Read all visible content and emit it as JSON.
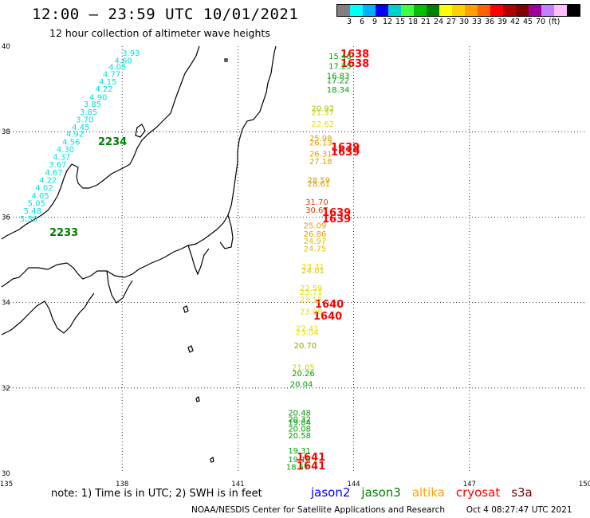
{
  "header": {
    "title": "12:00 – 23:59 UTC 10/01/2021",
    "subtitle": "12 hour collection of altimeter wave heights"
  },
  "colorbar": {
    "colors": [
      "#808080",
      "#00ffff",
      "#00b0ff",
      "#0000ff",
      "#00d0d0",
      "#40ff40",
      "#00c000",
      "#008000",
      "#ffff00",
      "#ffd000",
      "#ffa000",
      "#ff6000",
      "#ff0000",
      "#b00000",
      "#800000",
      "#a000a0",
      "#c080ff",
      "#ffc0ff",
      "#000000"
    ],
    "labels": [
      "3",
      "6",
      "9",
      "12",
      "15",
      "18",
      "21",
      "24",
      "27",
      "30",
      "33",
      "36",
      "39",
      "42",
      "45",
      "70"
    ],
    "unit": "(ft)"
  },
  "axes": {
    "x_ticks": [
      "135",
      "138",
      "141",
      "144",
      "147",
      "150"
    ],
    "y_ticks": [
      "40",
      "38",
      "36",
      "34",
      "32",
      "30"
    ]
  },
  "passes": [
    {
      "id": "2234",
      "satellite": "jason3",
      "color": "#008000"
    },
    {
      "id": "2233",
      "satellite": "jason3",
      "color": "#008000"
    },
    {
      "id": "1638",
      "satellite": "cryosat",
      "color": "#ff0000"
    },
    {
      "id": "1638",
      "satellite": "cryosat",
      "color": "#ff0000"
    },
    {
      "id": "1639",
      "satellite": "cryosat",
      "color": "#ff0000"
    },
    {
      "id": "1639",
      "satellite": "cryosat",
      "color": "#ff0000"
    },
    {
      "id": "1639",
      "satellite": "cryosat",
      "color": "#ff0000"
    },
    {
      "id": "1639",
      "satellite": "cryosat",
      "color": "#ff0000"
    },
    {
      "id": "1640",
      "satellite": "cryosat",
      "color": "#ff0000"
    },
    {
      "id": "1640",
      "satellite": "cryosat",
      "color": "#ff0000"
    },
    {
      "id": "1641",
      "satellite": "cryosat",
      "color": "#ff0000"
    },
    {
      "id": "1641",
      "satellite": "cryosat",
      "color": "#ff0000"
    }
  ],
  "measurements": [
    {
      "lon": 138.0,
      "lat": 39.78,
      "swh": "3.93",
      "color": "#00e0e0"
    },
    {
      "lon": 137.8,
      "lat": 39.6,
      "swh": "4.60",
      "color": "#00e0e0"
    },
    {
      "lon": 137.65,
      "lat": 39.45,
      "swh": "4.05",
      "color": "#00e0e0"
    },
    {
      "lon": 137.5,
      "lat": 39.28,
      "swh": "4.77",
      "color": "#00e0e0"
    },
    {
      "lon": 137.4,
      "lat": 39.1,
      "swh": "4.15",
      "color": "#00e0e0"
    },
    {
      "lon": 137.3,
      "lat": 38.94,
      "swh": "4.22",
      "color": "#00e0e0"
    },
    {
      "lon": 137.15,
      "lat": 38.74,
      "swh": "4.90",
      "color": "#00e0e0"
    },
    {
      "lon": 137.0,
      "lat": 38.58,
      "swh": "3.85",
      "color": "#00e0e0"
    },
    {
      "lon": 136.9,
      "lat": 38.4,
      "swh": "3.85",
      "color": "#00e0e0"
    },
    {
      "lon": 136.8,
      "lat": 38.22,
      "swh": "3.70",
      "color": "#00e0e0"
    },
    {
      "lon": 136.7,
      "lat": 38.04,
      "swh": "4.45",
      "color": "#00e0e0"
    },
    {
      "lon": 136.55,
      "lat": 37.88,
      "swh": "4.92",
      "color": "#00e0e0"
    },
    {
      "lon": 136.45,
      "lat": 37.7,
      "swh": "4.56",
      "color": "#00e0e0"
    },
    {
      "lon": 136.3,
      "lat": 37.52,
      "swh": "4.30",
      "color": "#00e0e0"
    },
    {
      "lon": 136.2,
      "lat": 37.34,
      "swh": "4.37",
      "color": "#00e0e0"
    },
    {
      "lon": 136.1,
      "lat": 37.16,
      "swh": "3.67",
      "color": "#00e0e0"
    },
    {
      "lon": 136.0,
      "lat": 36.98,
      "swh": "4.67",
      "color": "#00e0e0"
    },
    {
      "lon": 135.85,
      "lat": 36.8,
      "swh": "4.22",
      "color": "#00e0e0"
    },
    {
      "lon": 135.75,
      "lat": 36.62,
      "swh": "4.02",
      "color": "#00e0e0"
    },
    {
      "lon": 135.65,
      "lat": 36.44,
      "swh": "4.05",
      "color": "#00e0e0"
    },
    {
      "lon": 135.55,
      "lat": 36.26,
      "swh": "5.05",
      "color": "#00e0e0"
    },
    {
      "lon": 135.45,
      "lat": 36.08,
      "swh": "5.48",
      "color": "#00e0e0"
    },
    {
      "lon": 135.35,
      "lat": 35.9,
      "swh": "5.30",
      "color": "#00e0e0"
    },
    {
      "lon": 143.35,
      "lat": 39.7,
      "swh": "15.46",
      "color": "#00a000"
    },
    {
      "lon": 143.35,
      "lat": 39.47,
      "swh": "17.25",
      "color": "#00a000"
    },
    {
      "lon": 143.3,
      "lat": 39.24,
      "swh": "16.83",
      "color": "#00a000"
    },
    {
      "lon": 143.3,
      "lat": 39.13,
      "swh": "17.22",
      "color": "#00a000"
    },
    {
      "lon": 143.3,
      "lat": 38.92,
      "swh": "18.34",
      "color": "#00a000"
    },
    {
      "lon": 142.9,
      "lat": 38.48,
      "swh": "20.92",
      "color": "#a0c000"
    },
    {
      "lon": 142.9,
      "lat": 38.39,
      "swh": "21.37",
      "color": "#d0d000"
    },
    {
      "lon": 142.9,
      "lat": 38.12,
      "swh": "22.62",
      "color": "#e8e000"
    },
    {
      "lon": 142.85,
      "lat": 37.78,
      "swh": "25.98",
      "color": "#e0a000"
    },
    {
      "lon": 142.85,
      "lat": 37.68,
      "swh": "26.13",
      "color": "#e0a000"
    },
    {
      "lon": 142.85,
      "lat": 37.42,
      "swh": "26.31",
      "color": "#e0a000"
    },
    {
      "lon": 142.85,
      "lat": 37.24,
      "swh": "27.18",
      "color": "#e0a000"
    },
    {
      "lon": 142.8,
      "lat": 36.8,
      "swh": "28.59",
      "color": "#e0a000"
    },
    {
      "lon": 142.8,
      "lat": 36.72,
      "swh": "28.61",
      "color": "#e0a000"
    },
    {
      "lon": 142.75,
      "lat": 36.29,
      "swh": "31.70",
      "color": "#e04000"
    },
    {
      "lon": 142.75,
      "lat": 36.1,
      "swh": "30.67",
      "color": "#e04000"
    },
    {
      "lon": 142.7,
      "lat": 35.74,
      "swh": "25.09",
      "color": "#e0a000"
    },
    {
      "lon": 142.7,
      "lat": 35.54,
      "swh": "26.86",
      "color": "#e0a000"
    },
    {
      "lon": 142.7,
      "lat": 35.37,
      "swh": "24.97",
      "color": "#e0c000"
    },
    {
      "lon": 142.7,
      "lat": 35.2,
      "swh": "24.75",
      "color": "#e0c000"
    },
    {
      "lon": 142.65,
      "lat": 34.78,
      "swh": "23.31",
      "color": "#e8e000"
    },
    {
      "lon": 142.65,
      "lat": 34.68,
      "swh": "24.01",
      "color": "#e0c000"
    },
    {
      "lon": 142.6,
      "lat": 34.27,
      "swh": "22.59",
      "color": "#e8e000"
    },
    {
      "lon": 142.6,
      "lat": 34.18,
      "swh": "23.71",
      "color": "#e8e000"
    },
    {
      "lon": 142.6,
      "lat": 34.0,
      "swh": "23.15",
      "color": "#e8e000"
    },
    {
      "lon": 142.6,
      "lat": 33.72,
      "swh": "23.08",
      "color": "#e8e000"
    },
    {
      "lon": 142.5,
      "lat": 33.33,
      "swh": "22.41",
      "color": "#e8e000"
    },
    {
      "lon": 142.5,
      "lat": 33.24,
      "swh": "23.04",
      "color": "#e8e000"
    },
    {
      "lon": 142.45,
      "lat": 32.93,
      "swh": "20.70",
      "color": "#80b000"
    },
    {
      "lon": 142.4,
      "lat": 32.42,
      "swh": "21.05",
      "color": "#d0d000"
    },
    {
      "lon": 142.4,
      "lat": 32.28,
      "swh": "20.26",
      "color": "#00a000"
    },
    {
      "lon": 142.35,
      "lat": 32.02,
      "swh": "20.04",
      "color": "#00a000"
    },
    {
      "lon": 142.3,
      "lat": 31.35,
      "swh": "20.48",
      "color": "#00a000"
    },
    {
      "lon": 142.3,
      "lat": 31.2,
      "swh": "20.32",
      "color": "#00a000"
    },
    {
      "lon": 142.3,
      "lat": 31.13,
      "swh": "19.84",
      "color": "#00a000"
    },
    {
      "lon": 142.3,
      "lat": 30.98,
      "swh": "20.08",
      "color": "#00a000"
    },
    {
      "lon": 142.3,
      "lat": 30.82,
      "swh": "20.58",
      "color": "#00a000"
    },
    {
      "lon": 142.3,
      "lat": 30.47,
      "swh": "19.31",
      "color": "#00a000"
    },
    {
      "lon": 142.3,
      "lat": 30.26,
      "swh": "19.18",
      "color": "#00a000"
    },
    {
      "lon": 142.25,
      "lat": 30.08,
      "swh": "18.57",
      "color": "#00a000"
    }
  ],
  "footer": {
    "note": "note: 1) Time is in UTC; 2) SWH is in feet",
    "satellites": [
      {
        "name": "jason2",
        "color": "#0000ff"
      },
      {
        "name": "jason3",
        "color": "#008000"
      },
      {
        "name": "altika",
        "color": "#ffa000"
      },
      {
        "name": "cryosat",
        "color": "#ff0000"
      },
      {
        "name": "s3a",
        "color": "#800000"
      }
    ],
    "credit": "NOAA/NESDIS Center for Satellite Applications and Research",
    "timestamp": "Oct  4 08:27:47 UTC 2021"
  }
}
